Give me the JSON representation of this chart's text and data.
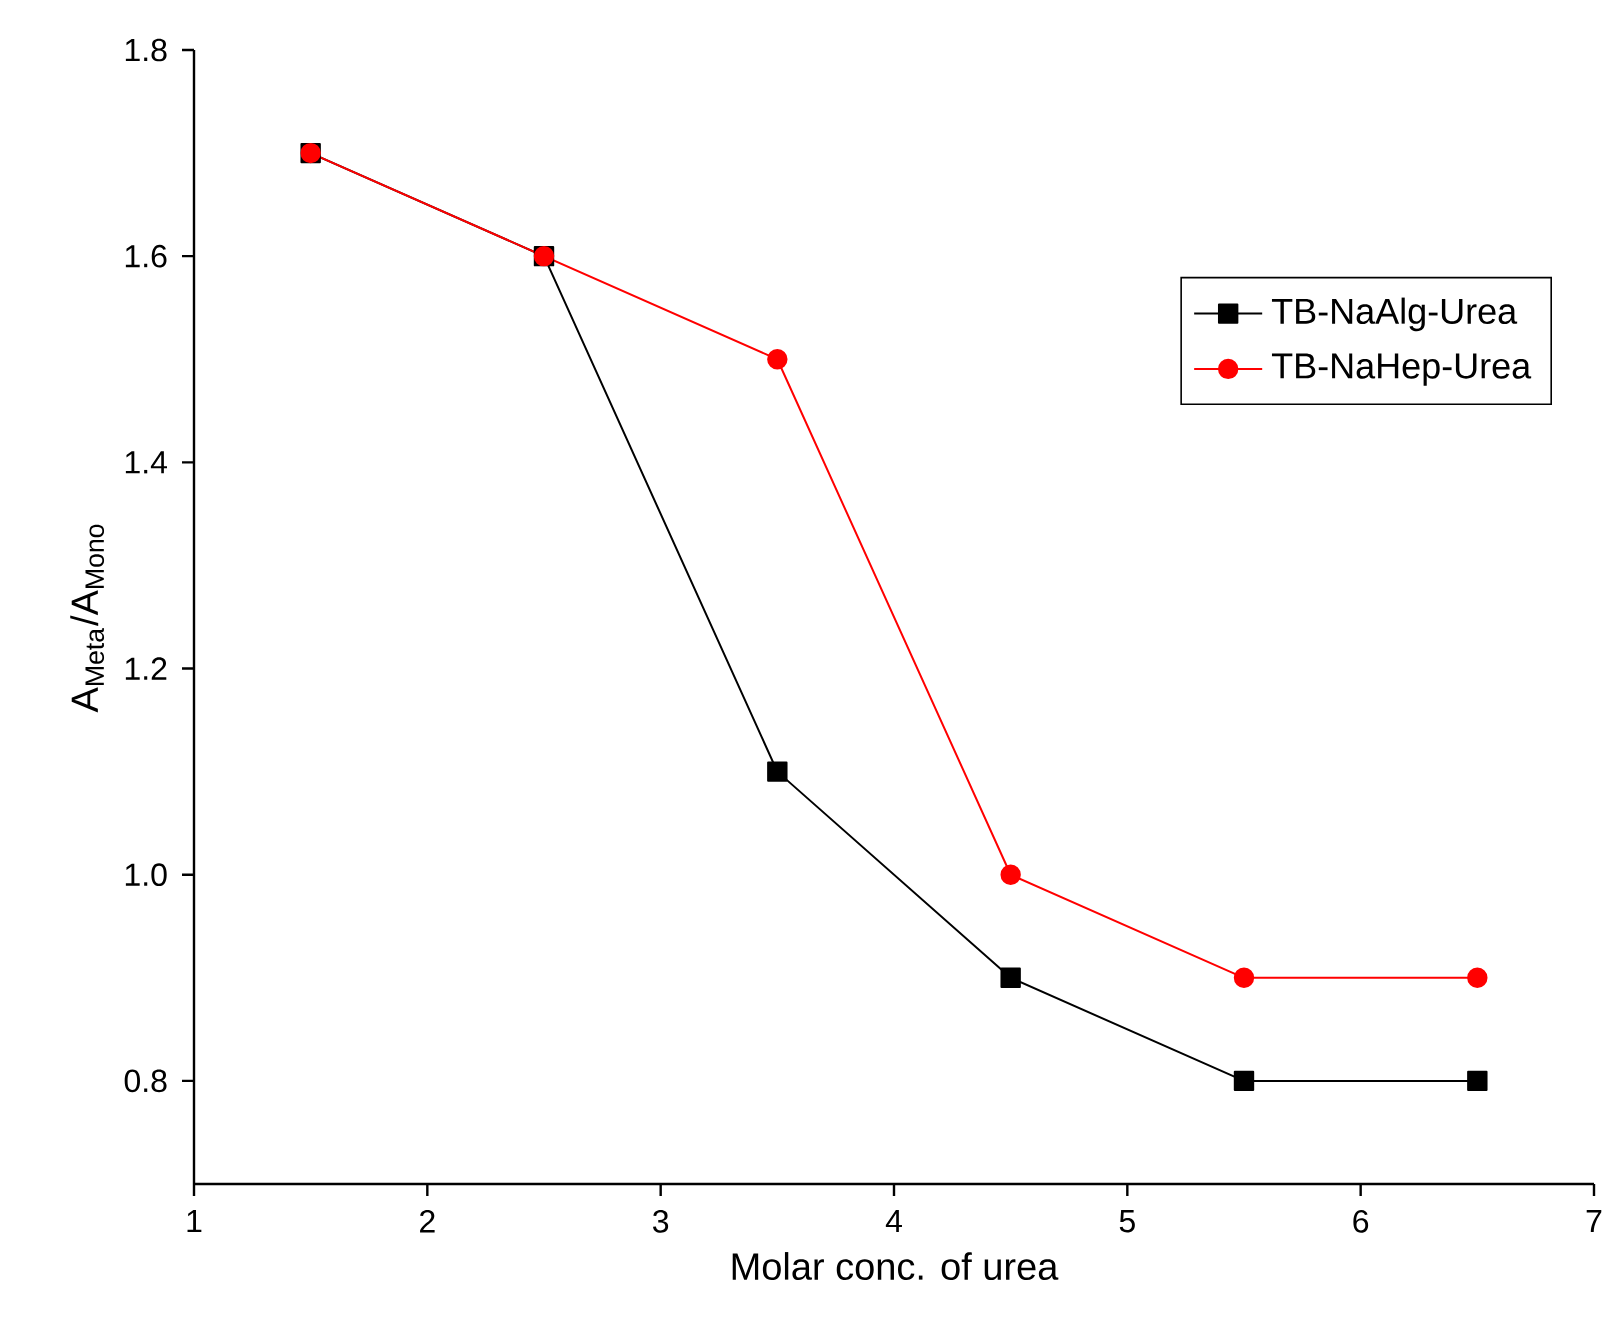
{
  "chart_data": {
    "type": "line",
    "xlabel": "Molar conc. of urea",
    "ylabel": "A$_{Meta}$/A$_{Mono}$",
    "x": [
      1.5,
      2.5,
      3.5,
      4.5,
      5.5,
      6.5
    ],
    "series": [
      {
        "name": "TB-NaAlg-Urea",
        "color": "#000000",
        "marker": "square",
        "values": [
          1.7,
          1.6,
          1.1,
          0.9,
          0.8,
          0.8
        ]
      },
      {
        "name": "TB-NaHep-Urea",
        "color": "#ff0000",
        "marker": "circle",
        "values": [
          1.7,
          1.6,
          1.5,
          1.0,
          0.9,
          0.9
        ]
      }
    ],
    "xlim": [
      1,
      7
    ],
    "xticks": [
      1,
      2,
      3,
      4,
      5,
      6,
      7
    ],
    "ylim": [
      0.7,
      1.8
    ],
    "yticks": [
      0.8,
      {
        "value": 1,
        "label": "1.0"
      },
      1.2,
      1.4,
      1.6,
      1.8
    ],
    "grid": false,
    "legend": "top right",
    "line_style": "solid"
  }
}
